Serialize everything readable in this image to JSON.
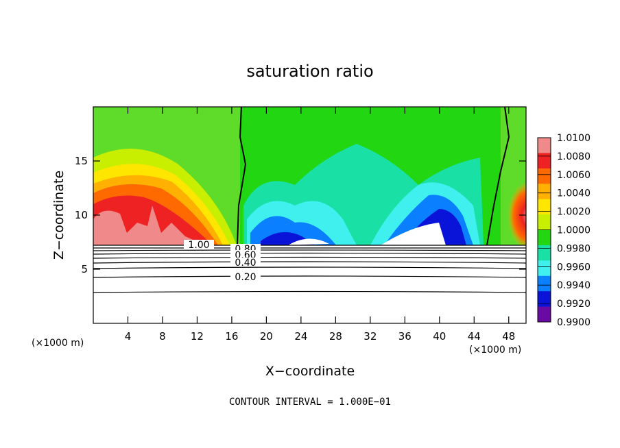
{
  "chart_data": {
    "type": "heatmap",
    "title": "saturation ratio",
    "xlabel": "X−coordinate",
    "ylabel": "Z−coordinate",
    "x_unit_left": "(×1000 m)",
    "x_unit_right": "(×1000 m)",
    "xlim": [
      0,
      50
    ],
    "ylim": [
      0,
      20
    ],
    "x_ticks": [
      4,
      8,
      12,
      16,
      20,
      24,
      28,
      32,
      36,
      40,
      44,
      48
    ],
    "y_ticks": [
      5,
      10,
      15
    ],
    "colorbar": {
      "labels": [
        "1.0100",
        "1.0080",
        "1.0060",
        "1.0040",
        "1.0020",
        "1.0000",
        "0.9980",
        "0.9960",
        "0.9940",
        "0.9920",
        "0.9900"
      ],
      "range": [
        0.99,
        1.01
      ],
      "colors_top_to_bottom": [
        "#f08a8a",
        "#ee2222",
        "#ff6a00",
        "#ffb000",
        "#ffe600",
        "#c9ef00",
        "#22d611",
        "#19e0a5",
        "#3ff0ee",
        "#0a7fff",
        "#0a14d9",
        "#6a0aa5"
      ]
    },
    "contour_labels": [
      "1.00",
      "0.80",
      "0.60",
      "0.40",
      "0.20"
    ],
    "contour_levels": [
      1.0,
      0.8,
      0.6,
      0.4,
      0.2
    ],
    "footer": "CONTOUR INTERVAL = 1.000E−01"
  }
}
